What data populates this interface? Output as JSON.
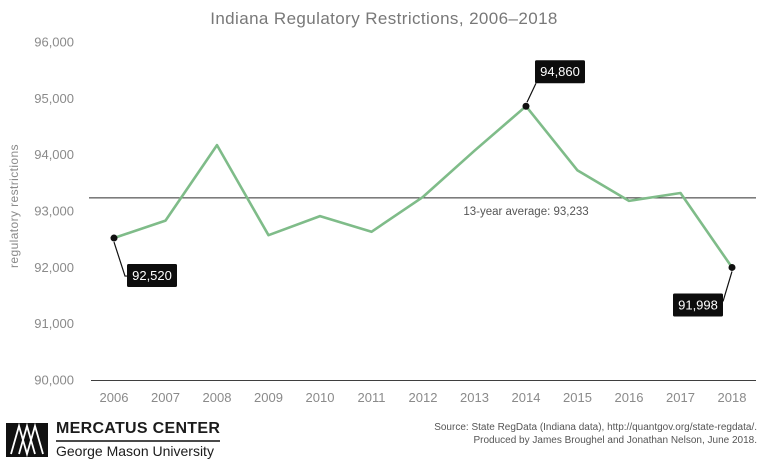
{
  "title": "Indiana Regulatory Restrictions, 2006–2018",
  "chart_data": {
    "type": "line",
    "x": [
      2006,
      2007,
      2008,
      2009,
      2010,
      2011,
      2012,
      2013,
      2014,
      2015,
      2016,
      2017,
      2018
    ],
    "series": [
      {
        "name": "Indiana regulatory restrictions",
        "values": [
          92520,
          92830,
          94170,
          92570,
          92910,
          92630,
          93250,
          94070,
          94860,
          93720,
          93180,
          93320,
          91998
        ]
      }
    ],
    "title": "Indiana Regulatory Restrictions, 2006–2018",
    "xlabel": "",
    "ylabel": "regulatory restrictions",
    "ylim": [
      90000,
      96000
    ],
    "yticks": [
      90000,
      91000,
      92000,
      93000,
      94000,
      95000,
      96000
    ],
    "grid": false,
    "legend": "none",
    "line_color": "#7fbc89",
    "average_line": {
      "value": 93233,
      "label": "13-year average: 93,233"
    },
    "point_labels": [
      {
        "year": 2006,
        "text": "92,520"
      },
      {
        "year": 2014,
        "text": "94,860"
      },
      {
        "year": 2018,
        "text": "91,998"
      }
    ]
  },
  "footer": {
    "logo_icon": "mercatus-m-logo",
    "org_name": "MERCATUS CENTER",
    "org_sub": "George Mason University",
    "source_line1": "Source: State RegData (Indiana data), http://quantgov.org/state-regdata/.",
    "source_line2": "Produced by James Broughel and Jonathan Nelson, June 2018."
  }
}
